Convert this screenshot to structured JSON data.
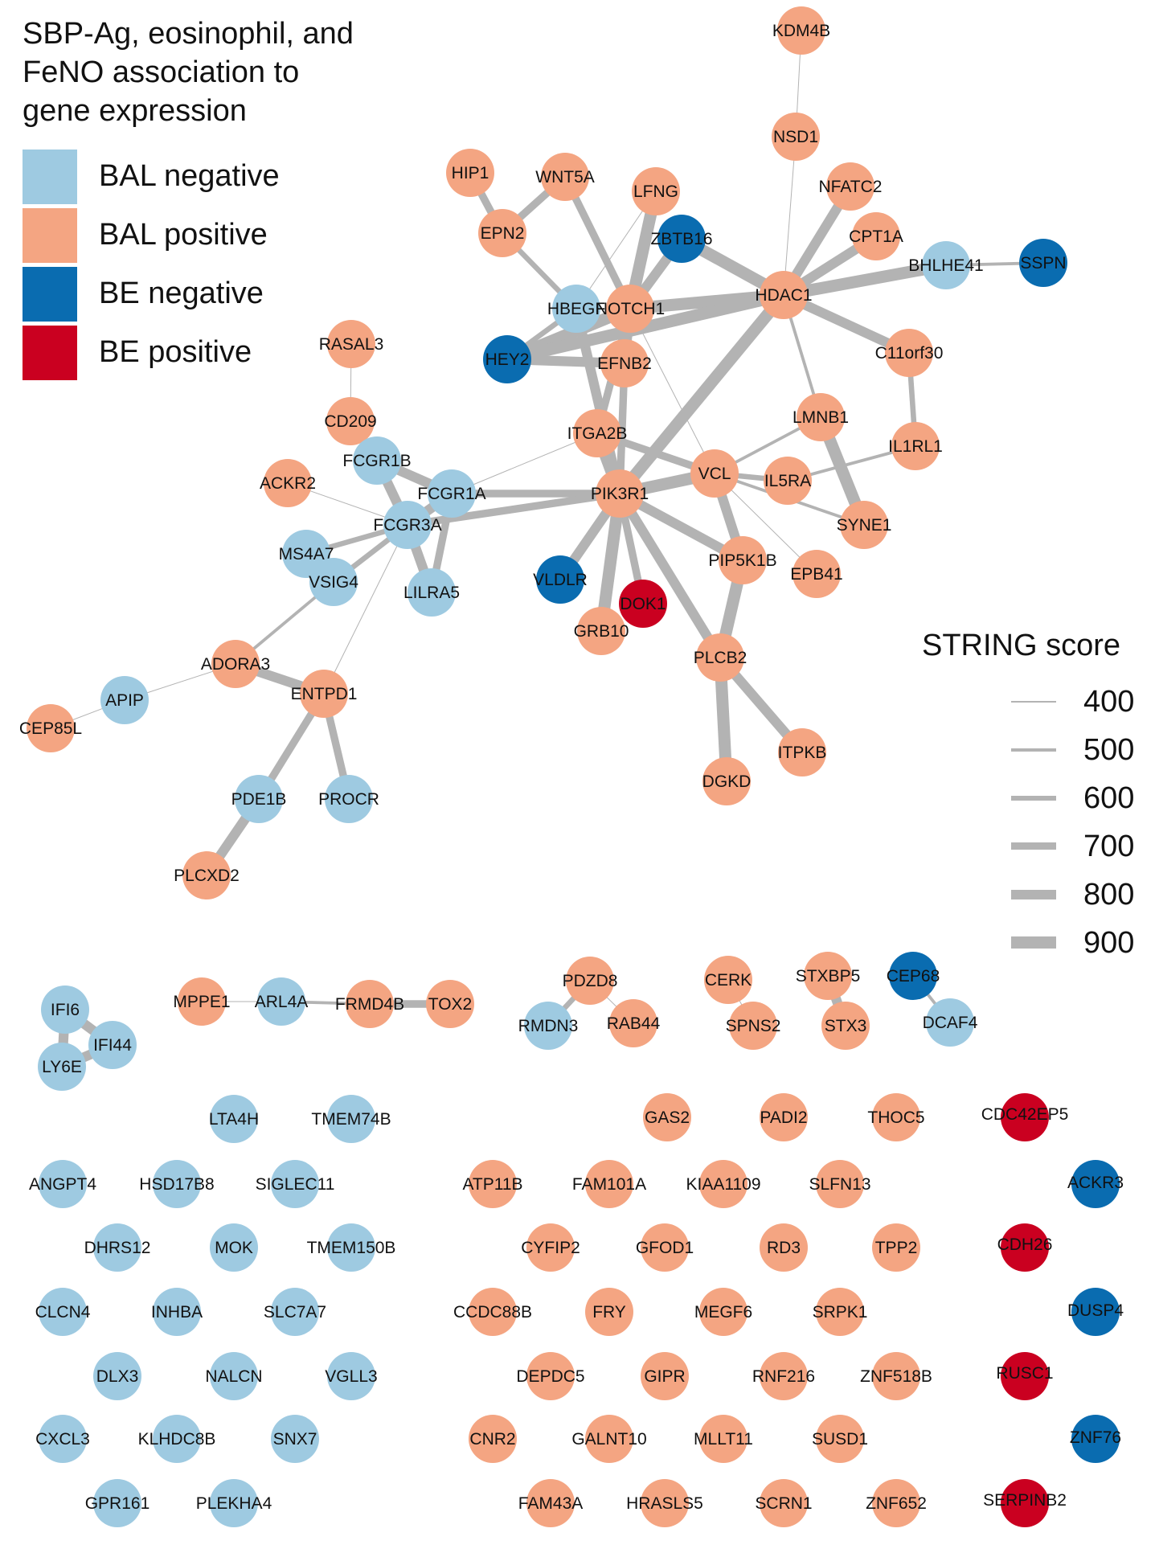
{
  "title_lines": [
    "SBP-Ag, eosinophil, and",
    "FeNO association to",
    "gene expression"
  ],
  "colors": {
    "bal_negative": "#9ecae1",
    "bal_positive": "#f4a582",
    "be_negative": "#0a6cb0",
    "be_positive": "#ca0020",
    "edge": "#b3b3b3",
    "label": "#111111"
  },
  "legend": [
    {
      "key": "bal_negative",
      "label": "BAL negative"
    },
    {
      "key": "bal_positive",
      "label": "BAL positive"
    },
    {
      "key": "be_negative",
      "label": "BE negative"
    },
    {
      "key": "be_positive",
      "label": "BE positive"
    }
  ],
  "string_legend": {
    "title": "STRING score",
    "scores": [
      400,
      500,
      600,
      700,
      800,
      900
    ]
  },
  "nodes": [
    {
      "id": "KDM4B",
      "cat": "bal_positive"
    },
    {
      "id": "NSD1",
      "cat": "bal_positive"
    },
    {
      "id": "HIP1",
      "cat": "bal_positive"
    },
    {
      "id": "WNT5A",
      "cat": "bal_positive"
    },
    {
      "id": "LFNG",
      "cat": "bal_positive"
    },
    {
      "id": "NFATC2",
      "cat": "bal_positive"
    },
    {
      "id": "EPN2",
      "cat": "bal_positive"
    },
    {
      "id": "ZBTB16",
      "cat": "be_negative"
    },
    {
      "id": "CPT1A",
      "cat": "bal_positive"
    },
    {
      "id": "BHLHE41",
      "cat": "bal_negative"
    },
    {
      "id": "SSPN",
      "cat": "be_negative"
    },
    {
      "id": "HBEGF",
      "cat": "bal_negative"
    },
    {
      "id": "NOTCH1",
      "cat": "bal_positive"
    },
    {
      "id": "HDAC1",
      "cat": "bal_positive"
    },
    {
      "id": "RASAL3",
      "cat": "bal_positive"
    },
    {
      "id": "HEY2",
      "cat": "be_negative"
    },
    {
      "id": "EFNB2",
      "cat": "bal_positive"
    },
    {
      "id": "C11orf30",
      "cat": "bal_positive"
    },
    {
      "id": "CD209",
      "cat": "bal_positive"
    },
    {
      "id": "ITGA2B",
      "cat": "bal_positive"
    },
    {
      "id": "LMNB1",
      "cat": "bal_positive"
    },
    {
      "id": "IL1RL1",
      "cat": "bal_positive"
    },
    {
      "id": "FCGR1B",
      "cat": "bal_negative"
    },
    {
      "id": "ACKR2",
      "cat": "bal_positive"
    },
    {
      "id": "FCGR1A",
      "cat": "bal_negative"
    },
    {
      "id": "PIK3R1",
      "cat": "bal_positive"
    },
    {
      "id": "VCL",
      "cat": "bal_positive"
    },
    {
      "id": "IL5RA",
      "cat": "bal_positive"
    },
    {
      "id": "FCGR3A",
      "cat": "bal_negative"
    },
    {
      "id": "SYNE1",
      "cat": "bal_positive"
    },
    {
      "id": "MS4A7",
      "cat": "bal_negative"
    },
    {
      "id": "VSIG4",
      "cat": "bal_negative"
    },
    {
      "id": "PIP5K1B",
      "cat": "bal_positive"
    },
    {
      "id": "EPB41",
      "cat": "bal_positive"
    },
    {
      "id": "VLDLR",
      "cat": "be_negative"
    },
    {
      "id": "LILRA5",
      "cat": "bal_negative"
    },
    {
      "id": "DOK1",
      "cat": "be_positive"
    },
    {
      "id": "GRB10",
      "cat": "bal_positive"
    },
    {
      "id": "ADORA3",
      "cat": "bal_positive"
    },
    {
      "id": "PLCB2",
      "cat": "bal_positive"
    },
    {
      "id": "ENTPD1",
      "cat": "bal_positive"
    },
    {
      "id": "APIP",
      "cat": "bal_negative"
    },
    {
      "id": "CEP85L",
      "cat": "bal_positive"
    },
    {
      "id": "ITPKB",
      "cat": "bal_positive"
    },
    {
      "id": "DGKD",
      "cat": "bal_positive"
    },
    {
      "id": "PDE1B",
      "cat": "bal_negative"
    },
    {
      "id": "PROCR",
      "cat": "bal_negative"
    },
    {
      "id": "PLCXD2",
      "cat": "bal_positive"
    },
    {
      "id": "IFI6",
      "cat": "bal_negative"
    },
    {
      "id": "IFI44",
      "cat": "bal_negative"
    },
    {
      "id": "LY6E",
      "cat": "bal_negative"
    },
    {
      "id": "MPPE1",
      "cat": "bal_positive"
    },
    {
      "id": "ARL4A",
      "cat": "bal_negative"
    },
    {
      "id": "FRMD4B",
      "cat": "bal_positive"
    },
    {
      "id": "TOX2",
      "cat": "bal_positive"
    },
    {
      "id": "PDZD8",
      "cat": "bal_positive"
    },
    {
      "id": "RMDN3",
      "cat": "bal_negative"
    },
    {
      "id": "RAB44",
      "cat": "bal_positive"
    },
    {
      "id": "CERK",
      "cat": "bal_positive"
    },
    {
      "id": "SPNS2",
      "cat": "bal_positive"
    },
    {
      "id": "STXBP5",
      "cat": "bal_positive"
    },
    {
      "id": "STX3",
      "cat": "bal_positive"
    },
    {
      "id": "CEP68",
      "cat": "be_negative"
    },
    {
      "id": "DCAF4",
      "cat": "bal_negative"
    },
    {
      "id": "LTA4H",
      "cat": "bal_negative"
    },
    {
      "id": "TMEM74B",
      "cat": "bal_negative"
    },
    {
      "id": "GAS2",
      "cat": "bal_positive"
    },
    {
      "id": "PADI2",
      "cat": "bal_positive"
    },
    {
      "id": "THOC5",
      "cat": "bal_positive"
    },
    {
      "id": "CDC42EP5",
      "cat": "be_positive"
    },
    {
      "id": "ANGPT4",
      "cat": "bal_negative"
    },
    {
      "id": "HSD17B8",
      "cat": "bal_negative"
    },
    {
      "id": "SIGLEC11",
      "cat": "bal_negative"
    },
    {
      "id": "ATP11B",
      "cat": "bal_positive"
    },
    {
      "id": "FAM101A",
      "cat": "bal_positive"
    },
    {
      "id": "KIAA1109",
      "cat": "bal_positive"
    },
    {
      "id": "SLFN13",
      "cat": "bal_positive"
    },
    {
      "id": "ACKR3",
      "cat": "be_negative"
    },
    {
      "id": "DHRS12",
      "cat": "bal_negative"
    },
    {
      "id": "MOK",
      "cat": "bal_negative"
    },
    {
      "id": "TMEM150B",
      "cat": "bal_negative"
    },
    {
      "id": "CYFIP2",
      "cat": "bal_positive"
    },
    {
      "id": "GFOD1",
      "cat": "bal_positive"
    },
    {
      "id": "RD3",
      "cat": "bal_positive"
    },
    {
      "id": "TPP2",
      "cat": "bal_positive"
    },
    {
      "id": "CDH26",
      "cat": "be_positive"
    },
    {
      "id": "CLCN4",
      "cat": "bal_negative"
    },
    {
      "id": "INHBA",
      "cat": "bal_negative"
    },
    {
      "id": "SLC7A7",
      "cat": "bal_negative"
    },
    {
      "id": "CCDC88B",
      "cat": "bal_positive"
    },
    {
      "id": "FRY",
      "cat": "bal_positive"
    },
    {
      "id": "MEGF6",
      "cat": "bal_positive"
    },
    {
      "id": "SRPK1",
      "cat": "bal_positive"
    },
    {
      "id": "DUSP4",
      "cat": "be_negative"
    },
    {
      "id": "DLX3",
      "cat": "bal_negative"
    },
    {
      "id": "NALCN",
      "cat": "bal_negative"
    },
    {
      "id": "VGLL3",
      "cat": "bal_negative"
    },
    {
      "id": "DEPDC5",
      "cat": "bal_positive"
    },
    {
      "id": "GIPR",
      "cat": "bal_positive"
    },
    {
      "id": "RNF216",
      "cat": "bal_positive"
    },
    {
      "id": "ZNF518B",
      "cat": "bal_positive"
    },
    {
      "id": "RUSC1",
      "cat": "be_positive"
    },
    {
      "id": "CXCL3",
      "cat": "bal_negative"
    },
    {
      "id": "KLHDC8B",
      "cat": "bal_negative"
    },
    {
      "id": "SNX7",
      "cat": "bal_negative"
    },
    {
      "id": "CNR2",
      "cat": "bal_positive"
    },
    {
      "id": "GALNT10",
      "cat": "bal_positive"
    },
    {
      "id": "MLLT11",
      "cat": "bal_positive"
    },
    {
      "id": "SUSD1",
      "cat": "bal_positive"
    },
    {
      "id": "ZNF76",
      "cat": "be_negative"
    },
    {
      "id": "GPR161",
      "cat": "bal_negative"
    },
    {
      "id": "PLEKHA4",
      "cat": "bal_negative"
    },
    {
      "id": "FAM43A",
      "cat": "bal_positive"
    },
    {
      "id": "HRASLS5",
      "cat": "bal_positive"
    },
    {
      "id": "SCRN1",
      "cat": "bal_positive"
    },
    {
      "id": "ZNF652",
      "cat": "bal_positive"
    },
    {
      "id": "SERPINB2",
      "cat": "be_positive"
    }
  ],
  "edges": [
    [
      "KDM4B",
      "NSD1",
      400
    ],
    [
      "NSD1",
      "HDAC1",
      400
    ],
    [
      "HIP1",
      "EPN2",
      700
    ],
    [
      "WNT5A",
      "EPN2",
      700
    ],
    [
      "WNT5A",
      "NOTCH1",
      700
    ],
    [
      "LFNG",
      "HBEGF",
      400
    ],
    [
      "LFNG",
      "NOTCH1",
      900
    ],
    [
      "EPN2",
      "HBEGF",
      600
    ],
    [
      "ZBTB16",
      "HDAC1",
      900
    ],
    [
      "ZBTB16",
      "NOTCH1",
      800
    ],
    [
      "NFATC2",
      "HDAC1",
      800
    ],
    [
      "CPT1A",
      "HDAC1",
      800
    ],
    [
      "BHLHE41",
      "HDAC1",
      900
    ],
    [
      "BHLHE41",
      "SSPN",
      500
    ],
    [
      "HBEGF",
      "HEY2",
      600
    ],
    [
      "HBEGF",
      "PIK3R1",
      800
    ],
    [
      "NOTCH1",
      "HEY2",
      900
    ],
    [
      "NOTCH1",
      "HDAC1",
      900
    ],
    [
      "NOTCH1",
      "EFNB2",
      800
    ],
    [
      "NOTCH1",
      "ITGA2B",
      700
    ],
    [
      "NOTCH1",
      "VCL",
      400
    ],
    [
      "HDAC1",
      "HEY2",
      900
    ],
    [
      "HDAC1",
      "C11orf30",
      800
    ],
    [
      "HDAC1",
      "PIK3R1",
      900
    ],
    [
      "HDAC1",
      "LMNB1",
      500
    ],
    [
      "HEY2",
      "EFNB2",
      800
    ],
    [
      "EFNB2",
      "PIK3R1",
      700
    ],
    [
      "RASAL3",
      "CD209",
      400
    ],
    [
      "CD209",
      "FCGR1B",
      600
    ],
    [
      "C11orf30",
      "IL1RL1",
      600
    ],
    [
      "ITGA2B",
      "PIK3R1",
      900
    ],
    [
      "ITGA2B",
      "VCL",
      700
    ],
    [
      "ITGA2B",
      "FCGR1A",
      400
    ],
    [
      "LMNB1",
      "SYNE1",
      900
    ],
    [
      "LMNB1",
      "VCL",
      500
    ],
    [
      "IL1RL1",
      "IL5RA",
      500
    ],
    [
      "FCGR1B",
      "FCGR1A",
      800
    ],
    [
      "FCGR1B",
      "FCGR3A",
      800
    ],
    [
      "ACKR2",
      "FCGR3A",
      400
    ],
    [
      "FCGR1A",
      "FCGR3A",
      800
    ],
    [
      "FCGR1A",
      "PIK3R1",
      700
    ],
    [
      "FCGR1A",
      "LILRA5",
      700
    ],
    [
      "PIK3R1",
      "VCL",
      900
    ],
    [
      "PIK3R1",
      "FCGR3A",
      700
    ],
    [
      "PIK3R1",
      "VLDLR",
      800
    ],
    [
      "PIK3R1",
      "DOK1",
      700
    ],
    [
      "PIK3R1",
      "GRB10",
      900
    ],
    [
      "PIK3R1",
      "PIP5K1B",
      800
    ],
    [
      "PIK3R1",
      "PLCB2",
      800
    ],
    [
      "VCL",
      "IL5RA",
      600
    ],
    [
      "VCL",
      "PIP5K1B",
      800
    ],
    [
      "VCL",
      "SYNE1",
      500
    ],
    [
      "VCL",
      "EPB41",
      400
    ],
    [
      "FCGR3A",
      "LILRA5",
      800
    ],
    [
      "FCGR3A",
      "VSIG4",
      600
    ],
    [
      "FCGR3A",
      "MS4A7",
      600
    ],
    [
      "FCGR3A",
      "ENTPD1",
      400
    ],
    [
      "VSIG4",
      "ADORA3",
      500
    ],
    [
      "PIP5K1B",
      "PLCB2",
      900
    ],
    [
      "ADORA3",
      "ENTPD1",
      800
    ],
    [
      "ADORA3",
      "APIP",
      400
    ],
    [
      "APIP",
      "CEP85L",
      400
    ],
    [
      "PLCB2",
      "ITPKB",
      800
    ],
    [
      "PLCB2",
      "DGKD",
      900
    ],
    [
      "ENTPD1",
      "PDE1B",
      700
    ],
    [
      "ENTPD1",
      "PROCR",
      700
    ],
    [
      "PDE1B",
      "PLCXD2",
      800
    ],
    [
      "IFI6",
      "IFI44",
      800
    ],
    [
      "IFI6",
      "LY6E",
      800
    ],
    [
      "IFI44",
      "LY6E",
      800
    ],
    [
      "MPPE1",
      "ARL4A",
      400
    ],
    [
      "ARL4A",
      "FRMD4B",
      500
    ],
    [
      "FRMD4B",
      "TOX2",
      700
    ],
    [
      "PDZD8",
      "RMDN3",
      600
    ],
    [
      "PDZD8",
      "RAB44",
      400
    ],
    [
      "CERK",
      "SPNS2",
      400
    ],
    [
      "STXBP5",
      "STX3",
      800
    ],
    [
      "CEP68",
      "DCAF4",
      500
    ]
  ]
}
